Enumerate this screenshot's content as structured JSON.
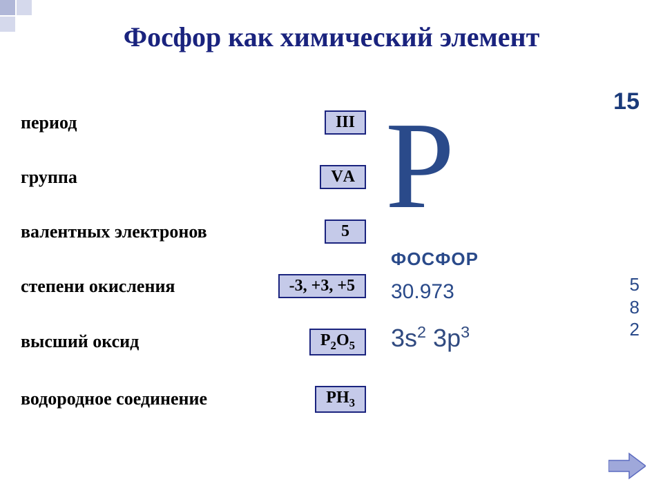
{
  "title": "Фосфор как химический элемент",
  "colors": {
    "title_color": "#1a237e",
    "box_fill": "#c5cae9",
    "box_border": "#1a237e",
    "element_text": "#2a4a8a",
    "arrow_fill": "#9fa8da",
    "arrow_stroke": "#5c6bc0"
  },
  "rows": [
    {
      "label": "период",
      "value_html": "III"
    },
    {
      "label": "группа",
      "value_html": "VА"
    },
    {
      "label": "валентных электронов",
      "value_html": "5"
    },
    {
      "label": "степени окисления",
      "value_html": "-3, +3, +5"
    },
    {
      "label": "высший оксид",
      "value_html": "Р<sub>2</sub>О<sub>5</sub>"
    },
    {
      "label": "водородное соединение",
      "value_html": "РН<sub>3</sub>"
    }
  ],
  "element": {
    "atomic_number": "15",
    "symbol": "P",
    "name": "ФОСФОР",
    "mass": "30.973",
    "config_html": "3s<sup>2</sup> 3p<sup>3</sup>",
    "shells": [
      "5",
      "8",
      "2"
    ]
  },
  "nav": {
    "next": "next-slide"
  }
}
